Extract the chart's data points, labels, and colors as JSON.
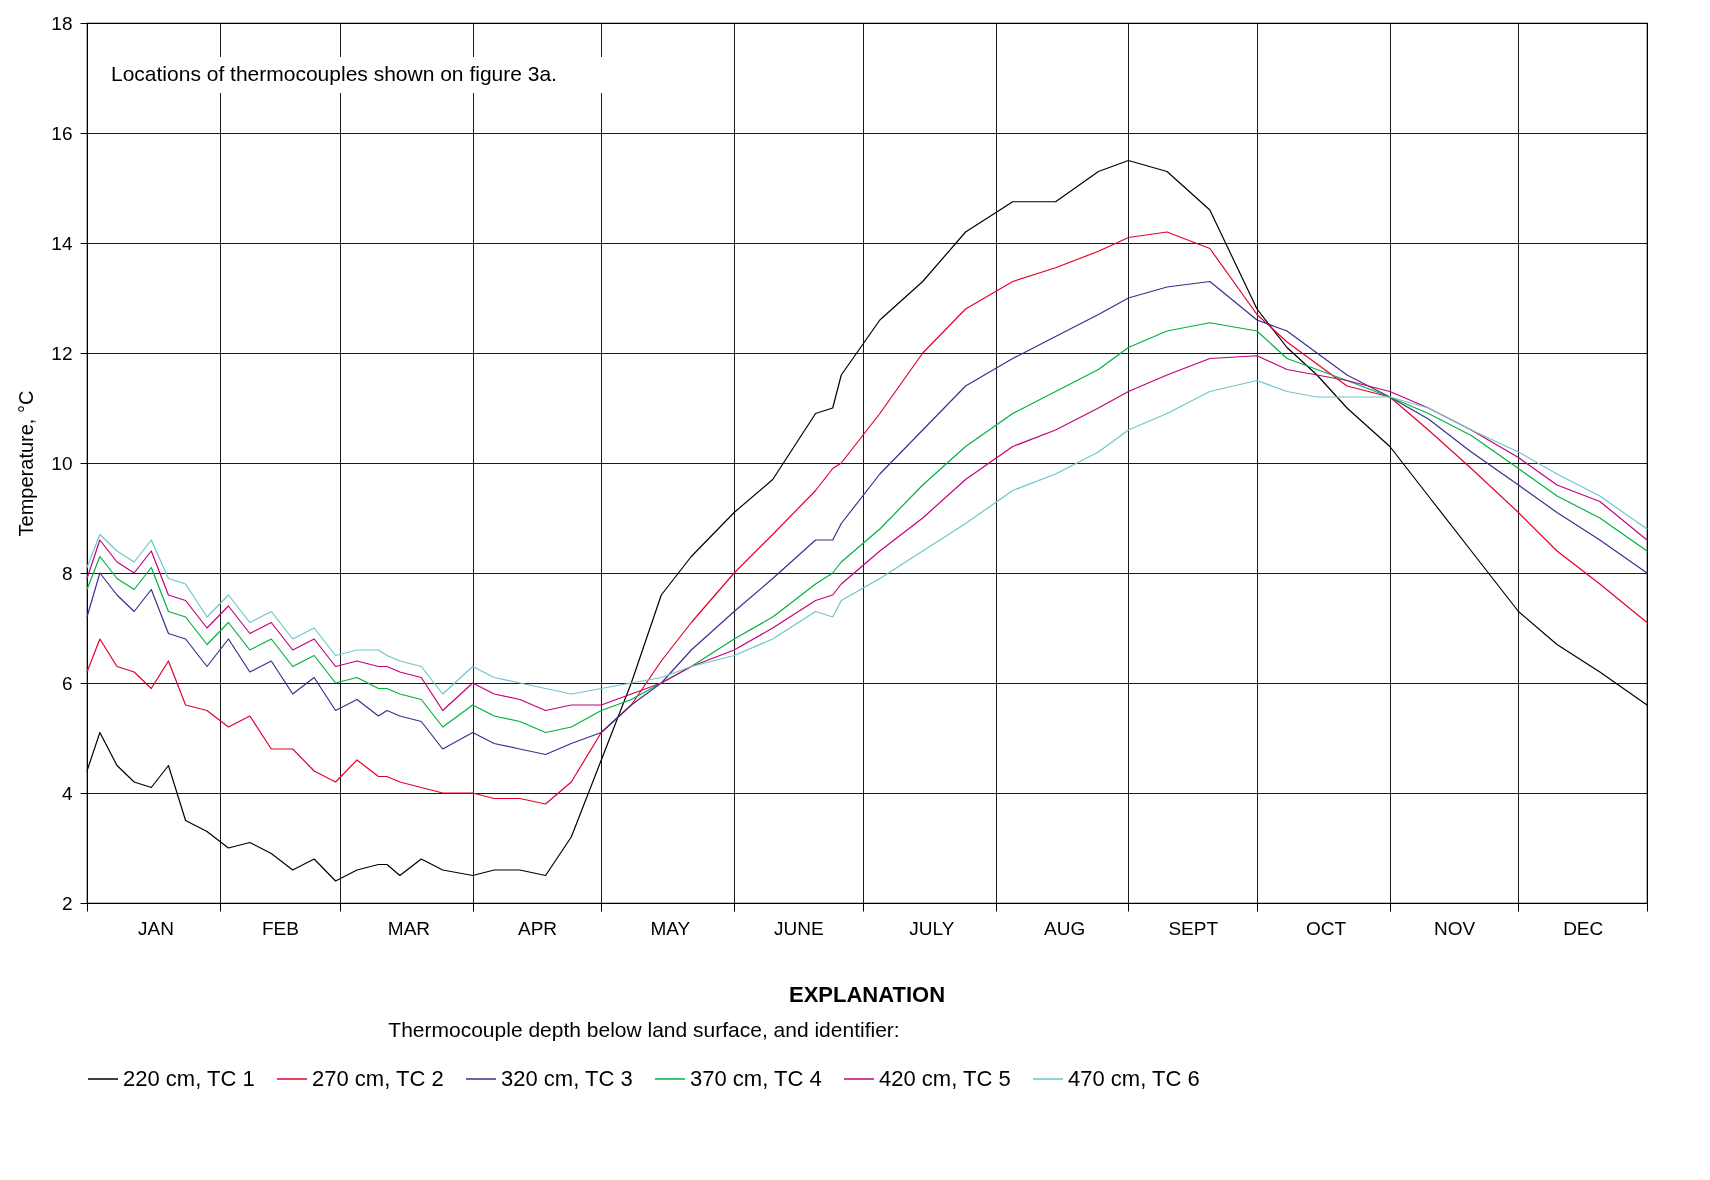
{
  "chart_data": {
    "type": "line",
    "ylabel": "Temperature, °C",
    "legend_title": "Thermocouple depth below land surface, and identifier:",
    "annotations": [
      "Locations of thermocouples shown on figure 3a.",
      "EXPLANATION"
    ],
    "x": [
      "--01-01",
      "--01-04",
      "--01-08",
      "--01-12",
      "--01-16",
      "--01-20",
      "--01-24",
      "--01-29",
      "--02-03",
      "--02-08",
      "--02-13",
      "--02-18",
      "--02-23",
      "--02-28",
      "--03-05",
      "--03-10",
      "--03-12",
      "--03-15",
      "--03-20",
      "--03-25",
      "--04-01",
      "--04-06",
      "--04-12",
      "--04-18",
      "--04-24",
      "--05-01",
      "--05-08",
      "--05-15",
      "--05-22",
      "--06-01",
      "--06-10",
      "--06-20",
      "--06-24",
      "--06-26",
      "--07-05",
      "--07-15",
      "--07-25",
      "--08-05",
      "--08-15",
      "--08-25",
      "--09-01",
      "--09-10",
      "--09-20",
      "--10-01",
      "--10-08",
      "--10-15",
      "--10-22",
      "--11-01",
      "--11-10",
      "--11-20",
      "--12-01",
      "--12-10",
      "--12-20",
      "--12-31"
    ],
    "series": [
      {
        "name": "220 cm, TC 1",
        "color": "#000000",
        "values": [
          4.4,
          5.1,
          4.5,
          4.2,
          4.1,
          4.5,
          3.5,
          3.3,
          3.0,
          3.1,
          2.9,
          2.6,
          2.8,
          2.4,
          2.6,
          2.7,
          2.7,
          2.5,
          2.8,
          2.6,
          2.5,
          2.6,
          2.6,
          2.5,
          3.2,
          4.6,
          6.0,
          7.6,
          8.3,
          9.1,
          9.7,
          10.9,
          11.0,
          11.6,
          12.6,
          13.3,
          14.2,
          14.75,
          14.75,
          15.3,
          15.5,
          15.3,
          14.6,
          12.8,
          12.1,
          11.6,
          11.0,
          10.3,
          9.4,
          8.4,
          7.3,
          6.7,
          6.2,
          5.6
        ]
      },
      {
        "name": "270 cm, TC 2",
        "color": "#e4002b",
        "values": [
          6.2,
          6.8,
          6.3,
          6.2,
          5.9,
          6.4,
          5.6,
          5.5,
          5.2,
          5.4,
          4.8,
          4.8,
          4.4,
          4.2,
          4.6,
          4.3,
          4.3,
          4.2,
          4.1,
          4.0,
          4.0,
          3.9,
          3.9,
          3.8,
          4.2,
          5.1,
          5.6,
          6.4,
          7.1,
          8.0,
          8.7,
          9.5,
          9.9,
          10.0,
          10.9,
          12.0,
          12.8,
          13.3,
          13.55,
          13.85,
          14.1,
          14.2,
          13.9,
          12.7,
          12.2,
          11.8,
          11.4,
          11.2,
          10.6,
          9.9,
          9.1,
          8.4,
          7.8,
          7.1
        ]
      },
      {
        "name": "320 cm, TC 3",
        "color": "#3c2f8f",
        "values": [
          7.2,
          8.0,
          7.6,
          7.3,
          7.7,
          6.9,
          6.8,
          6.3,
          6.8,
          6.2,
          6.4,
          5.8,
          6.1,
          5.5,
          5.7,
          5.4,
          5.5,
          5.4,
          5.3,
          4.8,
          5.1,
          4.9,
          4.8,
          4.7,
          4.9,
          5.1,
          5.6,
          6.0,
          6.6,
          7.3,
          7.9,
          8.6,
          8.6,
          8.9,
          9.8,
          10.6,
          11.4,
          11.9,
          12.3,
          12.7,
          13.0,
          13.2,
          13.3,
          12.6,
          12.4,
          12.0,
          11.6,
          11.2,
          10.8,
          10.2,
          9.6,
          9.1,
          8.6,
          8.0
        ]
      },
      {
        "name": "370 cm, TC 4",
        "color": "#00b140",
        "values": [
          7.7,
          8.3,
          7.9,
          7.7,
          8.1,
          7.3,
          7.2,
          6.7,
          7.1,
          6.6,
          6.8,
          6.3,
          6.5,
          6.0,
          6.1,
          5.9,
          5.9,
          5.8,
          5.7,
          5.2,
          5.6,
          5.4,
          5.3,
          5.1,
          5.2,
          5.5,
          5.7,
          6.0,
          6.3,
          6.8,
          7.2,
          7.8,
          8.0,
          8.2,
          8.8,
          9.6,
          10.3,
          10.9,
          11.3,
          11.7,
          12.1,
          12.4,
          12.55,
          12.4,
          11.9,
          11.7,
          11.5,
          11.2,
          10.9,
          10.5,
          9.9,
          9.4,
          9.0,
          8.4
        ]
      },
      {
        "name": "420 cm, TC 5",
        "color": "#c4007c",
        "values": [
          7.9,
          8.6,
          8.2,
          8.0,
          8.4,
          7.6,
          7.5,
          7.0,
          7.4,
          6.9,
          7.1,
          6.6,
          6.8,
          6.3,
          6.4,
          6.3,
          6.3,
          6.2,
          6.1,
          5.5,
          6.0,
          5.8,
          5.7,
          5.5,
          5.6,
          5.6,
          5.8,
          6.0,
          6.3,
          6.6,
          7.0,
          7.5,
          7.6,
          7.8,
          8.4,
          9.0,
          9.7,
          10.3,
          10.6,
          11.0,
          11.3,
          11.6,
          11.9,
          11.95,
          11.7,
          11.6,
          11.5,
          11.3,
          11.0,
          10.6,
          10.1,
          9.6,
          9.3,
          8.6
        ]
      },
      {
        "name": "470 cm, TC 6",
        "color": "#6ec6ca",
        "values": [
          8.1,
          8.7,
          8.4,
          8.2,
          8.6,
          7.9,
          7.8,
          7.2,
          7.6,
          7.1,
          7.3,
          6.8,
          7.0,
          6.5,
          6.6,
          6.6,
          6.5,
          6.4,
          6.3,
          5.8,
          6.3,
          6.1,
          6.0,
          5.9,
          5.8,
          5.9,
          6.0,
          6.1,
          6.3,
          6.5,
          6.8,
          7.3,
          7.2,
          7.5,
          7.9,
          8.4,
          8.9,
          9.5,
          9.8,
          10.2,
          10.6,
          10.9,
          11.3,
          11.5,
          11.3,
          11.2,
          11.2,
          11.2,
          11.0,
          10.6,
          10.2,
          9.8,
          9.4,
          8.8
        ]
      }
    ],
    "xlim": [
      "--01-01",
      "--12-31"
    ],
    "xticks": [
      {
        "value": "--01-01",
        "label": null
      },
      {
        "value": "--01-17",
        "label": "JAN"
      },
      {
        "value": "--02-01",
        "label": null
      },
      {
        "value": "--02-15",
        "label": "FEB"
      },
      {
        "value": "--03-01",
        "label": null
      },
      {
        "value": "--03-17",
        "label": "MAR"
      },
      {
        "value": "--04-01",
        "label": null
      },
      {
        "value": "--04-16",
        "label": "APR"
      },
      {
        "value": "--05-01",
        "label": null
      },
      {
        "value": "--05-17",
        "label": "MAY"
      },
      {
        "value": "--06-01",
        "label": null
      },
      {
        "value": "--06-16",
        "label": "JUNE"
      },
      {
        "value": "--07-01",
        "label": null
      },
      {
        "value": "--07-17",
        "label": "JULY"
      },
      {
        "value": "--08-01",
        "label": null
      },
      {
        "value": "--08-17",
        "label": "AUG"
      },
      {
        "value": "--09-01",
        "label": null
      },
      {
        "value": "--09-16",
        "label": "SEPT"
      },
      {
        "value": "--10-01",
        "label": null
      },
      {
        "value": "--10-17",
        "label": "OCT"
      },
      {
        "value": "--11-01",
        "label": null
      },
      {
        "value": "--11-16",
        "label": "NOV"
      },
      {
        "value": "--12-01",
        "label": null
      },
      {
        "value": "--12-16",
        "label": "DEC"
      },
      {
        "value": "--12-31",
        "label": null
      }
    ],
    "ylim": [
      2,
      18
    ],
    "yticks": [
      2,
      4,
      6,
      8,
      10,
      12,
      14,
      16,
      18
    ],
    "grid": true,
    "legend": "bottom",
    "line_style": "solid",
    "marker": "none"
  }
}
